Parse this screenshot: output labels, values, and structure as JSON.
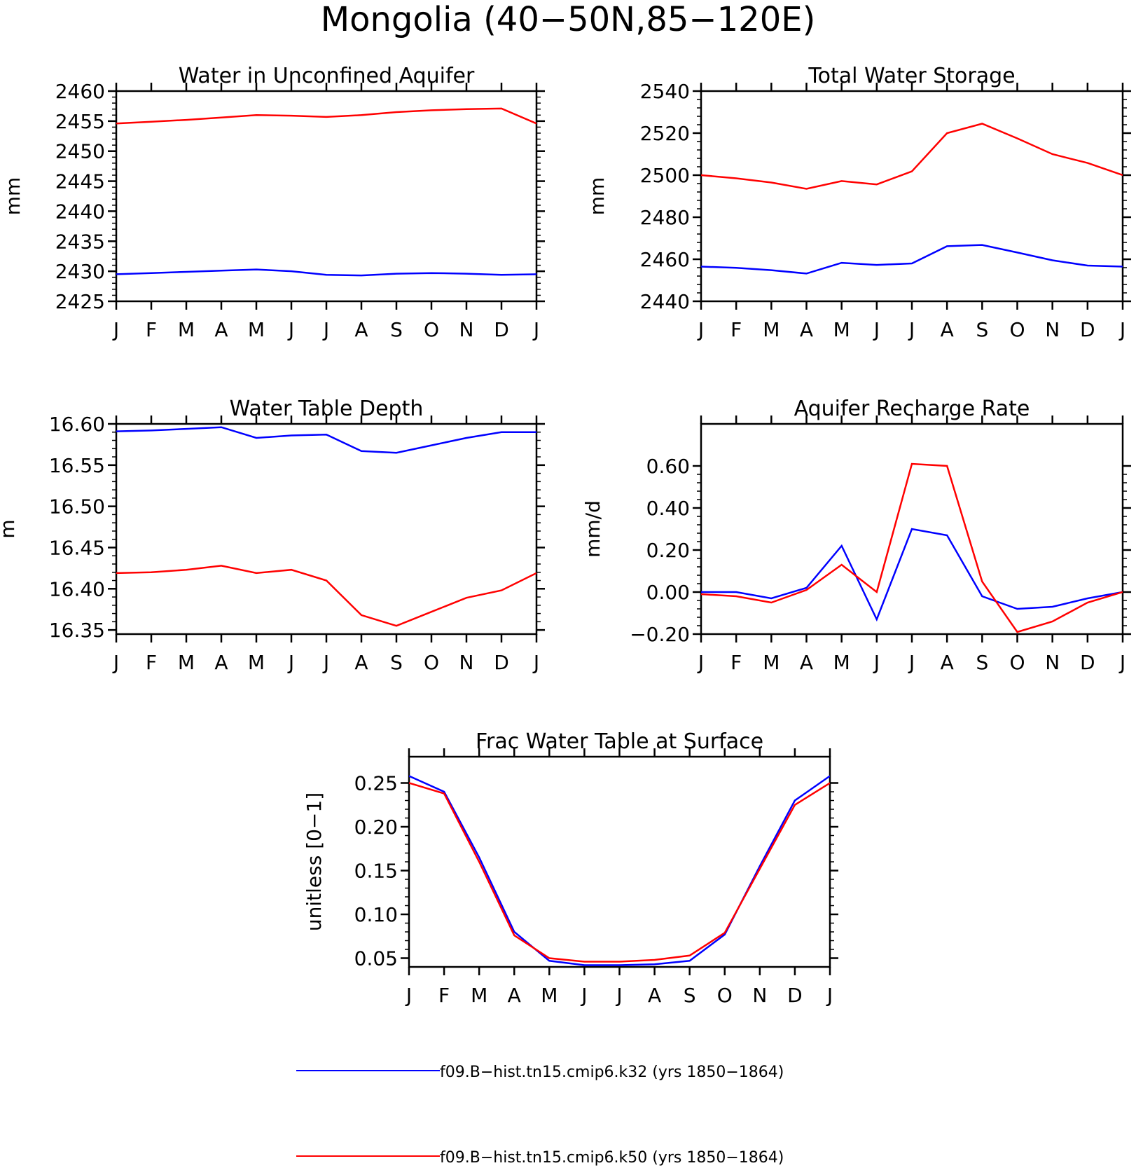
{
  "figure": {
    "title": "Mongolia (40−50N,85−120E)"
  },
  "legend": {
    "items": [
      {
        "label": "f09.B−hist.tn15.cmip6.k32 (yrs 1850−1864)",
        "color": "#0000ff"
      },
      {
        "label": "f09.B−hist.tn15.cmip6.k50 (yrs 1850−1864)",
        "color": "#ff0000"
      }
    ]
  },
  "chart_data": [
    {
      "type": "line",
      "title": "Water in Unconfined Aquifer",
      "ylabel": "mm",
      "xlabel": "",
      "categories": [
        "J",
        "F",
        "M",
        "A",
        "M",
        "J",
        "J",
        "A",
        "S",
        "O",
        "N",
        "D",
        "J"
      ],
      "ylim": [
        2425,
        2460
      ],
      "yticks": [
        2425,
        2430,
        2435,
        2440,
        2445,
        2450,
        2455,
        2460
      ],
      "ytick_labels": [
        "2425",
        "2430",
        "2435",
        "2440",
        "2445",
        "2450",
        "2455",
        "2460"
      ],
      "series": [
        {
          "color": "#0000ff",
          "values": [
            2429.5,
            2429.7,
            2429.9,
            2430.1,
            2430.3,
            2430.0,
            2429.4,
            2429.3,
            2429.6,
            2429.7,
            2429.6,
            2429.4,
            2429.5
          ]
        },
        {
          "color": "#ff0000",
          "values": [
            2454.6,
            2454.9,
            2455.2,
            2455.6,
            2456.0,
            2455.9,
            2455.7,
            2456.0,
            2456.5,
            2456.8,
            2457.0,
            2457.1,
            2454.6
          ]
        }
      ]
    },
    {
      "type": "line",
      "title": "Total Water Storage",
      "ylabel": "mm",
      "xlabel": "",
      "categories": [
        "J",
        "F",
        "M",
        "A",
        "M",
        "J",
        "J",
        "A",
        "S",
        "O",
        "N",
        "D",
        "J"
      ],
      "ylim": [
        2440,
        2540
      ],
      "yticks": [
        2440,
        2460,
        2480,
        2500,
        2520,
        2540
      ],
      "ytick_labels": [
        "2440",
        "2460",
        "2480",
        "2500",
        "2520",
        "2540"
      ],
      "series": [
        {
          "color": "#0000ff",
          "values": [
            2456.5,
            2455.9,
            2454.8,
            2453.2,
            2458.3,
            2457.3,
            2458.0,
            2466.2,
            2466.8,
            2463.2,
            2459.5,
            2457.0,
            2456.5
          ]
        },
        {
          "color": "#ff0000",
          "values": [
            2500.0,
            2498.5,
            2496.5,
            2493.5,
            2497.2,
            2495.6,
            2501.8,
            2520.0,
            2524.5,
            2517.5,
            2510.0,
            2505.8,
            2500.0
          ]
        }
      ]
    },
    {
      "type": "line",
      "title": "Water Table Depth",
      "ylabel": "m",
      "xlabel": "",
      "categories": [
        "J",
        "F",
        "M",
        "A",
        "M",
        "J",
        "J",
        "A",
        "S",
        "O",
        "N",
        "D",
        "J"
      ],
      "ylim": [
        16.345,
        16.6
      ],
      "yticks": [
        16.35,
        16.4,
        16.45,
        16.5,
        16.55,
        16.6
      ],
      "ytick_labels": [
        "16.35",
        "16.40",
        "16.45",
        "16.50",
        "16.55",
        "16.60"
      ],
      "series": [
        {
          "color": "#0000ff",
          "values": [
            16.591,
            16.592,
            16.594,
            16.596,
            16.583,
            16.586,
            16.587,
            16.567,
            16.565,
            16.574,
            16.583,
            16.59,
            16.59
          ]
        },
        {
          "color": "#ff0000",
          "values": [
            16.419,
            16.42,
            16.423,
            16.428,
            16.419,
            16.423,
            16.41,
            16.368,
            16.355,
            16.372,
            16.389,
            16.398,
            16.419
          ]
        }
      ]
    },
    {
      "type": "line",
      "title": "Aquifer Recharge Rate",
      "ylabel": "mm/d",
      "xlabel": "",
      "categories": [
        "J",
        "F",
        "M",
        "A",
        "M",
        "J",
        "J",
        "A",
        "S",
        "O",
        "N",
        "D",
        "J"
      ],
      "ylim": [
        -0.2,
        0.8
      ],
      "yticks": [
        -0.2,
        0.0,
        0.2,
        0.4,
        0.6
      ],
      "ytick_labels": [
        "−0.20",
        "0.00",
        "0.20",
        "0.40",
        "0.60"
      ],
      "series": [
        {
          "color": "#0000ff",
          "values": [
            0.0,
            0.0,
            -0.03,
            0.02,
            0.22,
            -0.13,
            0.3,
            0.27,
            -0.02,
            -0.08,
            -0.07,
            -0.03,
            0.0
          ]
        },
        {
          "color": "#ff0000",
          "values": [
            -0.01,
            -0.02,
            -0.05,
            0.01,
            0.13,
            0.0,
            0.61,
            0.6,
            0.05,
            -0.19,
            -0.14,
            -0.05,
            0.0
          ]
        }
      ]
    },
    {
      "type": "line",
      "title": "Frac Water Table at Surface",
      "ylabel": "unitless [0−1]",
      "xlabel": "",
      "categories": [
        "J",
        "F",
        "M",
        "A",
        "M",
        "J",
        "J",
        "A",
        "S",
        "O",
        "N",
        "D",
        "J"
      ],
      "ylim": [
        0.04,
        0.28
      ],
      "yticks": [
        0.05,
        0.1,
        0.15,
        0.2,
        0.25
      ],
      "ytick_labels": [
        "0.05",
        "0.10",
        "0.15",
        "0.20",
        "0.25"
      ],
      "series": [
        {
          "color": "#0000ff",
          "values": [
            0.258,
            0.24,
            0.165,
            0.08,
            0.047,
            0.042,
            0.042,
            0.043,
            0.047,
            0.077,
            0.155,
            0.23,
            0.258
          ]
        },
        {
          "color": "#ff0000",
          "values": [
            0.25,
            0.238,
            0.16,
            0.076,
            0.05,
            0.046,
            0.046,
            0.048,
            0.053,
            0.079,
            0.152,
            0.225,
            0.25
          ]
        }
      ]
    }
  ]
}
